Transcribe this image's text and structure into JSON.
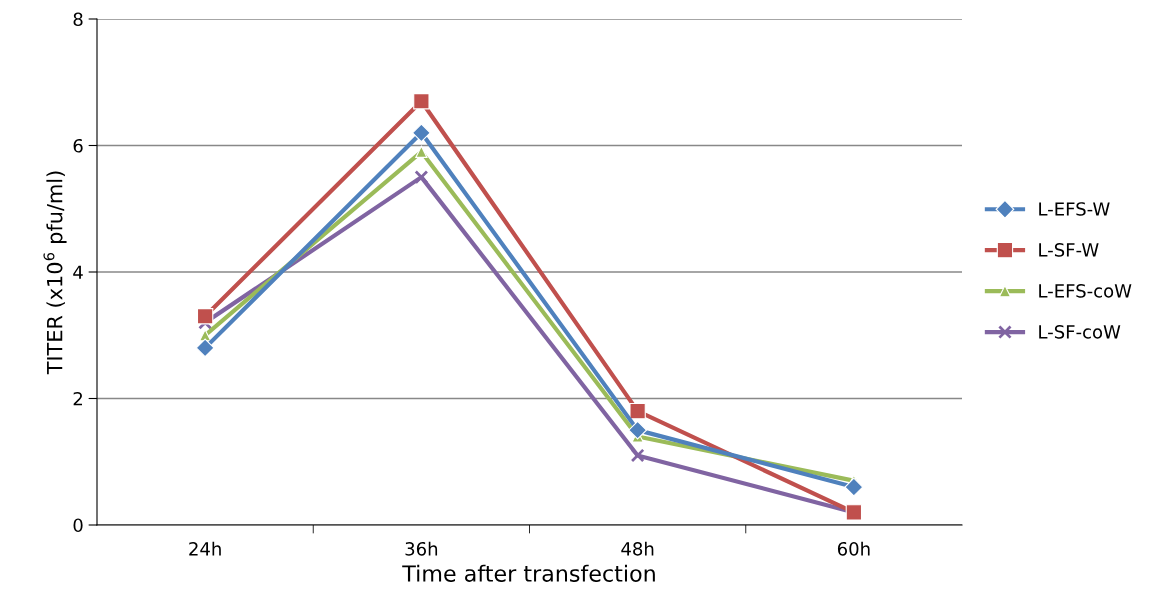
{
  "chart_data": {
    "type": "line",
    "xlabel": "Time after transfection",
    "ylabel": "TITER (x10$^{6}$ pfu/ml)",
    "categories": [
      "24h",
      "36h",
      "48h",
      "60h"
    ],
    "series": [
      {
        "name": "L-EFS-W",
        "color": "#4f81bd",
        "marker": "diamond",
        "values": [
          2.8,
          6.2,
          1.5,
          0.6
        ]
      },
      {
        "name": "L-SF-W",
        "color": "#c0504d",
        "marker": "square",
        "values": [
          3.3,
          6.7,
          1.8,
          0.2
        ]
      },
      {
        "name": "L-EFS-coW",
        "color": "#9bbb59",
        "marker": "triangle",
        "values": [
          3.0,
          5.9,
          1.4,
          0.7
        ]
      },
      {
        "name": "L-SF-coW",
        "color": "#8064a2",
        "marker": "cross",
        "values": [
          3.2,
          5.5,
          1.1,
          0.2
        ]
      }
    ],
    "ylim": [
      0,
      8
    ],
    "yticks": [
      0,
      2,
      4,
      6,
      8
    ],
    "grid": "y",
    "legend": "right"
  }
}
